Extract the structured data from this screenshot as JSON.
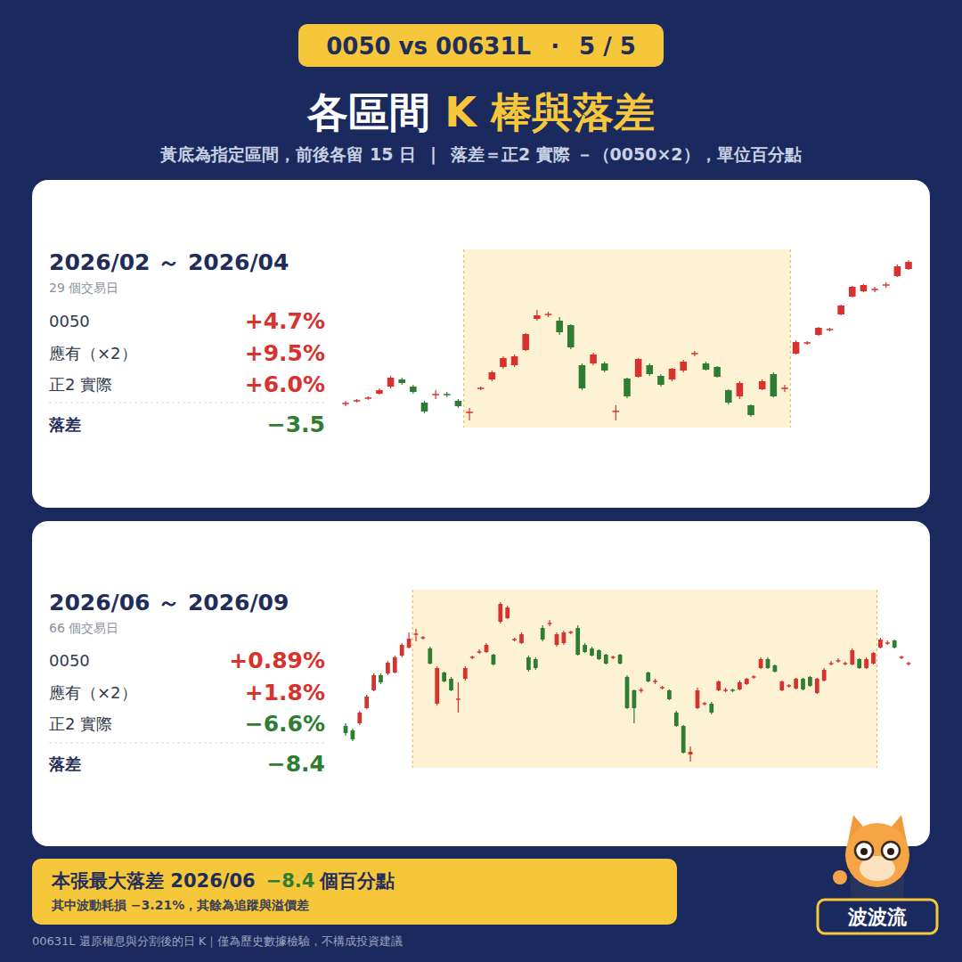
{
  "header": {
    "badge_left": "0050 vs 00631L",
    "badge_sep": "·",
    "badge_page": "5 / 5",
    "title_plain": "各區間",
    "title_accent": "K 棒與落差",
    "subtitle_left": "黃底為指定區間，前後各留 15 日",
    "subtitle_sep": "|",
    "subtitle_right": "落差＝正2 實際 －（0050×2），單位百分點"
  },
  "chart_data": [
    {
      "type": "candlestick",
      "title": "2026/02 ～ 2026/04",
      "subtitle": "29 個交易日",
      "stats": [
        {
          "label": "0050",
          "value": "+4.7%"
        },
        {
          "label": "應有（×2）",
          "value": "+9.5%"
        },
        {
          "label": "正2 實際",
          "value": "+6.0%"
        }
      ],
      "gap": {
        "label": "落差",
        "value": "−3.5"
      },
      "categories": [
        null,
        null,
        null,
        null,
        null,
        null,
        null,
        null,
        null,
        null,
        null,
        null,
        null,
        null,
        null,
        null,
        null,
        null,
        null,
        null,
        null,
        null,
        null,
        null,
        null,
        null,
        null,
        null,
        null,
        null,
        null,
        null,
        null,
        null,
        null,
        null,
        null,
        null,
        null,
        null,
        null,
        null,
        null,
        null,
        null,
        null,
        null,
        null,
        null,
        null,
        null
      ],
      "open": [
        13.4,
        14.9,
        16.4,
        19,
        23,
        27,
        23,
        14,
        18.4,
        18.6,
        15,
        8.4,
        21.9,
        27,
        34,
        35,
        43.5,
        61,
        63.4,
        60,
        57.5,
        35,
        36,
        36,
        9,
        27.5,
        28.5,
        35,
        29,
        27,
        32,
        41.4,
        36,
        34,
        21,
        17.5,
        12.5,
        21.5,
        30,
        21.9,
        41.5,
        47.4,
        52,
        54.9,
        63.5,
        73.5,
        76.5,
        77.4,
        79.9,
        85,
        89
      ],
      "high": [
        15,
        16,
        17.5,
        22,
        29,
        28,
        24,
        15,
        21,
        20,
        16,
        11,
        23,
        32,
        40,
        41,
        53,
        66,
        65,
        62,
        58,
        36,
        42,
        37,
        12.5,
        28,
        39,
        36,
        30,
        33.5,
        38,
        43,
        37,
        34.5,
        21.5,
        26,
        13,
        27,
        31,
        24,
        49,
        48.5,
        56.5,
        56,
        69,
        79.5,
        80.5,
        79,
        81.5,
        91.5,
        94
      ],
      "low": [
        12,
        14,
        15.5,
        18.5,
        22,
        24,
        19,
        8,
        16,
        17,
        11,
        4,
        21,
        26,
        33,
        34,
        43,
        60,
        62,
        52,
        44,
        21,
        35,
        31,
        4,
        16.5,
        28,
        29,
        23,
        26,
        31,
        40,
        32,
        28,
        13,
        16,
        6,
        21,
        17,
        20,
        41,
        46.5,
        51.5,
        54,
        63,
        73,
        76,
        76,
        78.5,
        84.5,
        88.5
      ],
      "close": [
        13.6,
        15.1,
        16.6,
        21,
        28,
        25,
        20,
        9,
        18.6,
        18.4,
        12,
        8.6,
        22.1,
        31,
        39,
        40,
        52.5,
        63,
        63.6,
        53.5,
        45,
        22,
        41,
        32,
        9.2,
        17.5,
        38.5,
        30,
        24,
        33,
        37,
        41.6,
        32.5,
        28.5,
        14,
        25,
        7,
        26,
        17.5,
        22.1,
        48,
        47.6,
        56,
        55.1,
        68.5,
        79,
        80,
        77.6,
        80.1,
        90.5,
        93
      ],
      "highlight": {
        "start": 11,
        "end": 39
      },
      "ylim": [
        0,
        100
      ],
      "tick_labels": false
    },
    {
      "type": "candlestick",
      "title": "2026/06 ～ 2026/09",
      "subtitle": "66 個交易日",
      "stats": [
        {
          "label": "0050",
          "value": "+0.89%"
        },
        {
          "label": "應有（×2）",
          "value": "+1.8%"
        },
        {
          "label": "正2 實際",
          "value": "−6.6%"
        }
      ],
      "gap": {
        "label": "落差",
        "value": "−8.4"
      },
      "categories": [
        null,
        null,
        null,
        null,
        null,
        null,
        null,
        null,
        null,
        null,
        null,
        null,
        null,
        null,
        null,
        null,
        null,
        null,
        null,
        null,
        null,
        null,
        null,
        null,
        null,
        null,
        null,
        null,
        null,
        null,
        null,
        null,
        null,
        null,
        null,
        null,
        null,
        null,
        null,
        null,
        null,
        null,
        null,
        null,
        null,
        null,
        null,
        null,
        null,
        null,
        null,
        null,
        null,
        null,
        null,
        null,
        null,
        null,
        null,
        null,
        null,
        null,
        null,
        null,
        null,
        null,
        null,
        null,
        null,
        null,
        null,
        null,
        null,
        null,
        null,
        null,
        null,
        null,
        null,
        null,
        null
      ],
      "open": [
        23.5,
        21,
        25,
        33.5,
        43.5,
        52,
        53,
        53.5,
        63,
        67.5,
        74.9,
        72.9,
        67,
        36,
        53.5,
        50,
        38.4,
        50,
        61.9,
        64.9,
        65,
        63.5,
        82,
        84,
        71.9,
        70,
        62,
        61,
        78.5,
        80.9,
        69,
        70,
        75.9,
        78.5,
        69,
        67,
        66,
        63.5,
        61.9,
        63.5,
        51,
        43.5,
        43.4,
        53.5,
        48.4,
        44.9,
        43.5,
        31,
        23.5,
        7.5,
        33.5,
        35.9,
        36,
        43.5,
        43.4,
        43.6,
        44,
        47,
        50.9,
        56,
        61,
        57.5,
        43.5,
        45.9,
        44.5,
        50,
        51,
        42,
        49,
        58.4,
        59.9,
        58.4,
        58,
        61,
        56,
        58.5,
        67.5,
        69.9,
        71.5,
        61.9,
        58.4
      ],
      "high": [
        25,
        22,
        32,
        41,
        53,
        53,
        60,
        63,
        70,
        76,
        78,
        74,
        68,
        57,
        54,
        51,
        48,
        57,
        63,
        66.5,
        70,
        64,
        93,
        91,
        73,
        76,
        63,
        62,
        80,
        83,
        76,
        77,
        77,
        80,
        70,
        68,
        66.5,
        64,
        63,
        64,
        52,
        44,
        45,
        54,
        50,
        46,
        44,
        32,
        24,
        12,
        45,
        37,
        37,
        49,
        45,
        44.5,
        49,
        50.5,
        52,
        62,
        62,
        58,
        49,
        47,
        50.5,
        50.5,
        51.5,
        50.5,
        56,
        60,
        61.5,
        59.5,
        67,
        61.5,
        62,
        65,
        73,
        71.5,
        72,
        63,
        59.5
      ],
      "low": [
        18,
        15,
        24,
        33,
        43,
        47,
        52,
        53,
        62,
        67,
        71,
        72,
        58,
        35,
        48,
        43,
        31,
        49,
        61,
        64,
        64.5,
        57.5,
        81,
        83.5,
        71,
        69.5,
        54,
        55,
        71,
        79.5,
        68,
        69,
        75,
        63,
        64.5,
        62.5,
        60.5,
        58,
        61,
        58,
        33,
        25,
        42,
        48,
        47,
        44,
        38,
        23,
        8,
        3.5,
        33,
        35,
        30,
        43,
        42.5,
        42.5,
        43.5,
        46.5,
        50,
        55.5,
        55.5,
        53.5,
        43,
        45,
        44,
        43.5,
        45.5,
        41.5,
        48.5,
        57.5,
        59,
        57.5,
        57.5,
        55.5,
        55.5,
        58,
        67,
        69,
        67,
        61,
        57.5
      ],
      "close": [
        19.5,
        16,
        31,
        40,
        52,
        48,
        59,
        62,
        69,
        72.5,
        75.1,
        73.1,
        58.5,
        56,
        48.5,
        43.5,
        38.6,
        56,
        62.1,
        65.1,
        69,
        58,
        92,
        90,
        72.1,
        75,
        55,
        56,
        72,
        81.1,
        75,
        76,
        76.1,
        63.5,
        65,
        63,
        61,
        58.5,
        62.1,
        58.5,
        33.5,
        33.5,
        43.6,
        48.5,
        48.6,
        45.1,
        38.5,
        23.5,
        8.5,
        9,
        43.5,
        36.1,
        31,
        48.5,
        43.6,
        43.4,
        48,
        50,
        51.1,
        61,
        56,
        54,
        48.5,
        46.1,
        50,
        44,
        46,
        50,
        55,
        58.6,
        60.1,
        58.6,
        66,
        56,
        61,
        64.5,
        72,
        70.1,
        67.5,
        62.1,
        58.6
      ],
      "highlight": {
        "start": 10,
        "end": 75
      },
      "ylim": [
        0,
        100
      ],
      "tick_labels": false
    }
  ],
  "footer": {
    "line1_left": "本張最大落差 2026/06",
    "line1_value": "−8.4",
    "line1_right": "個百分點",
    "line2": "其中波動耗損 −3.21%，其餘為追蹤與溢價差",
    "note": "00631L 還原權息與分割後的日 K｜僅為歷史數據檢驗，不構成投資建議",
    "mascot_label": "波波流"
  }
}
